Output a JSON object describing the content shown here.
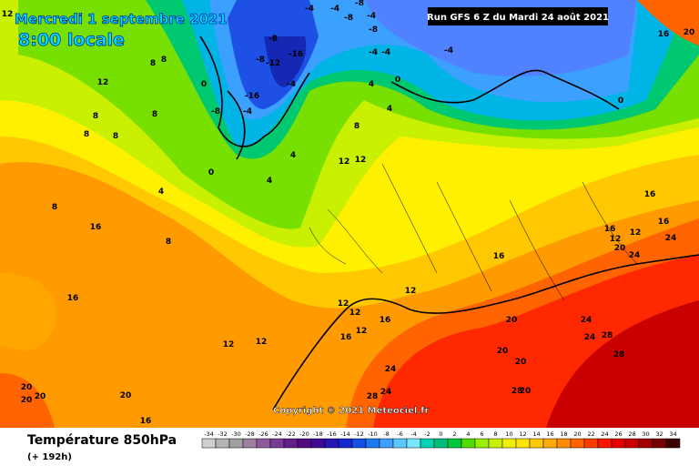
{
  "header": {
    "date": "Mercredi 1 septembre 2021",
    "time": "8:00 locale",
    "run": "Run GFS 6 Z du Mardi 24 août 2021"
  },
  "copyright": "Copyright © 2021 Meteociel.fr",
  "legend": {
    "title": "Température 850hPa",
    "subtitle": "(+ 192h)",
    "scale": [
      "-34",
      "-32",
      "-30",
      "-28",
      "-26",
      "-24",
      "-22",
      "-20",
      "-18",
      "-16",
      "-14",
      "-12",
      "-10",
      "-8",
      "-6",
      "-4",
      "-2",
      "0",
      "2",
      "4",
      "6",
      "8",
      "10",
      "12",
      "14",
      "16",
      "18",
      "20",
      "22",
      "24",
      "26",
      "28",
      "30",
      "32",
      "34"
    ]
  },
  "contour_labels": [
    "12",
    "-4",
    "-8",
    "-4",
    "-8",
    "-4",
    "-8",
    "-4",
    "-8",
    "-16",
    "-8",
    "-12",
    "-4",
    "-16",
    "-8",
    "-4",
    "-4",
    "-4",
    "0",
    "4",
    "4",
    "0",
    "4",
    "4",
    "0",
    "4",
    "0",
    "8",
    "8",
    "12",
    "8",
    "8",
    "8",
    "8",
    "12",
    "12",
    "8",
    "8",
    "16",
    "8",
    "16",
    "12",
    "12",
    "12",
    "12",
    "12",
    "16",
    "16",
    "16",
    "12",
    "20",
    "24",
    "24",
    "28",
    "24",
    "24",
    "28",
    "20",
    "20",
    "24",
    "28",
    "24",
    "28",
    "20",
    "16",
    "12",
    "20",
    "12",
    "16",
    "20",
    "20",
    "20",
    "20",
    "20",
    "16",
    "16",
    "16"
  ]
}
